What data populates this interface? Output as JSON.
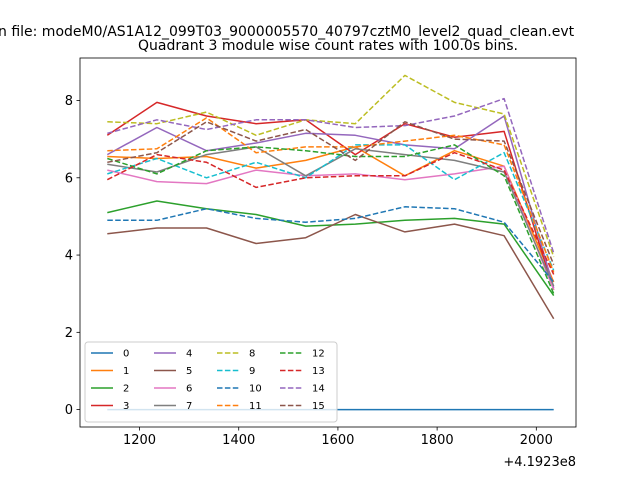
{
  "chart_data": {
    "type": "line",
    "suptitle": "n file: modeM0/AS1A12_099T03_9000005570_40797cztM0_level2_quad_clean.evt",
    "title": "Quadrant 3 module wise count rates with 100.0s bins.",
    "xlabel": "",
    "ylabel": "",
    "x_offset_label": "+4.1923e8",
    "xlim": [
      1080,
      2080
    ],
    "ylim": [
      -0.45,
      9.1
    ],
    "xticks": [
      1200,
      1400,
      1600,
      1800,
      2000
    ],
    "yticks": [
      0,
      2,
      4,
      6,
      8
    ],
    "x": [
      1135,
      1235,
      1335,
      1435,
      1535,
      1635,
      1735,
      1835,
      1935,
      2035
    ],
    "legend_position": "lower-left",
    "legend_columns": 4,
    "series": [
      {
        "name": "0",
        "color": "#1f77b4",
        "style": "solid",
        "values": [
          0,
          0,
          0,
          0,
          0,
          0,
          0,
          0,
          0,
          0
        ]
      },
      {
        "name": "1",
        "color": "#ff7f0e",
        "style": "solid",
        "values": [
          6.55,
          6.5,
          6.55,
          6.25,
          6.45,
          6.8,
          6.05,
          6.7,
          6.3,
          3.3
        ]
      },
      {
        "name": "2",
        "color": "#2ca02c",
        "style": "solid",
        "values": [
          5.1,
          5.4,
          5.2,
          5.05,
          4.75,
          4.8,
          4.9,
          4.95,
          4.8,
          2.95
        ]
      },
      {
        "name": "3",
        "color": "#d62728",
        "style": "solid",
        "values": [
          7.1,
          7.95,
          7.6,
          7.4,
          7.5,
          6.6,
          7.4,
          7.05,
          7.2,
          3.1
        ]
      },
      {
        "name": "4",
        "color": "#9467bd",
        "style": "solid",
        "values": [
          6.6,
          7.3,
          6.7,
          6.9,
          7.15,
          7.1,
          6.85,
          6.75,
          7.6,
          3.15
        ]
      },
      {
        "name": "5",
        "color": "#8c564b",
        "style": "solid",
        "values": [
          4.55,
          4.7,
          4.7,
          4.3,
          4.45,
          5.05,
          4.6,
          4.8,
          4.5,
          2.35
        ]
      },
      {
        "name": "6",
        "color": "#e377c2",
        "style": "solid",
        "values": [
          6.2,
          5.9,
          5.85,
          6.2,
          6.05,
          6.1,
          5.95,
          6.1,
          6.3,
          3.1
        ]
      },
      {
        "name": "7",
        "color": "#7f7f7f",
        "style": "solid",
        "values": [
          6.35,
          6.15,
          6.6,
          6.8,
          6.05,
          6.75,
          6.6,
          6.45,
          6.15,
          3.2
        ]
      },
      {
        "name": "8",
        "color": "#bcbd22",
        "style": "dashed",
        "values": [
          7.45,
          7.4,
          7.7,
          7.1,
          7.5,
          7.4,
          8.65,
          7.95,
          7.65,
          3.95
        ]
      },
      {
        "name": "9",
        "color": "#17becf",
        "style": "dashed",
        "values": [
          6.1,
          6.5,
          6.0,
          6.4,
          6.0,
          6.85,
          6.85,
          5.95,
          6.65,
          3.6
        ]
      },
      {
        "name": "10",
        "color": "#1f77b4",
        "style": "dashed",
        "values": [
          4.9,
          4.9,
          5.2,
          4.95,
          4.85,
          4.95,
          5.25,
          5.2,
          4.85,
          3.3
        ]
      },
      {
        "name": "11",
        "color": "#ff7f0e",
        "style": "dashed",
        "values": [
          6.7,
          6.75,
          7.55,
          6.65,
          6.8,
          6.8,
          6.95,
          7.1,
          6.85,
          3.55
        ]
      },
      {
        "name": "12",
        "color": "#2ca02c",
        "style": "dashed",
        "values": [
          6.5,
          6.1,
          6.7,
          6.8,
          6.7,
          6.55,
          6.55,
          6.85,
          6.05,
          3.0
        ]
      },
      {
        "name": "13",
        "color": "#d62728",
        "style": "dashed",
        "values": [
          5.95,
          6.6,
          6.4,
          5.75,
          6.0,
          6.05,
          6.05,
          6.65,
          6.2,
          3.5
        ]
      },
      {
        "name": "14",
        "color": "#9467bd",
        "style": "dashed",
        "values": [
          7.15,
          7.5,
          7.25,
          7.5,
          7.5,
          7.3,
          7.35,
          7.6,
          8.05,
          4.05
        ]
      },
      {
        "name": "15",
        "color": "#8c564b",
        "style": "dashed",
        "values": [
          6.4,
          6.65,
          7.45,
          6.95,
          7.25,
          6.45,
          7.45,
          7.0,
          6.95,
          3.75
        ]
      }
    ]
  }
}
